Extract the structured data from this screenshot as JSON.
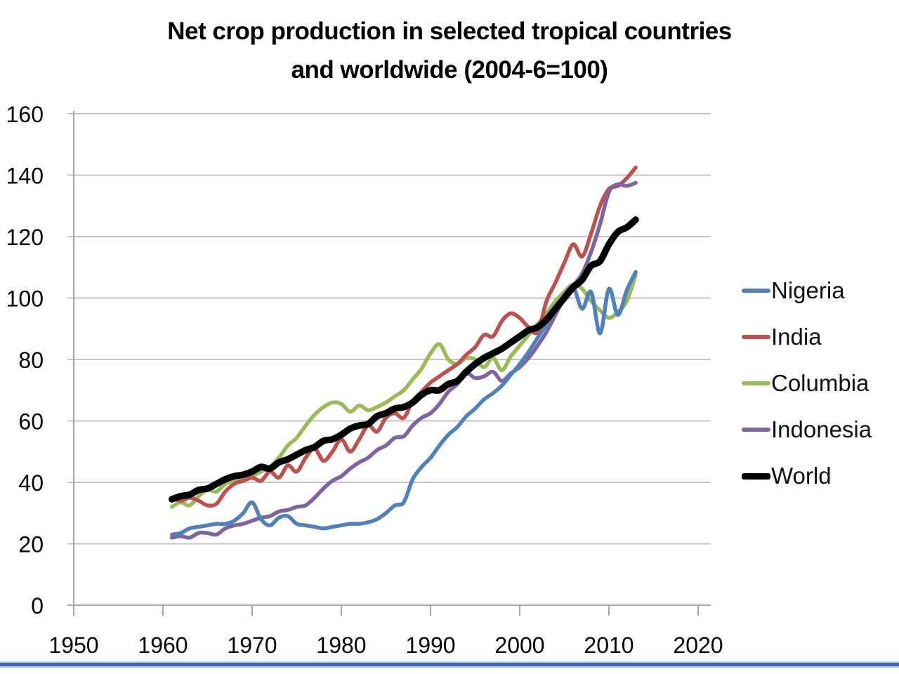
{
  "title": {
    "line1": "Net crop production in selected tropical countries",
    "line2": "and worldwide (2004-6=100)"
  },
  "colors": {
    "grid": "#c6c6c6",
    "axis": "#a6a6a6",
    "text": "#000000",
    "page_divider_core": "#3e68b2",
    "page_divider_halo": "#b9cbe8"
  },
  "chart_data": {
    "type": "line",
    "title": "Net crop production in selected tropical countries and worldwide (2004-6=100)",
    "xlabel": "",
    "ylabel": "",
    "xlim": [
      1950,
      2020
    ],
    "ylim": [
      0,
      160
    ],
    "x_ticks": [
      1950,
      1960,
      1970,
      1980,
      1990,
      2000,
      2010,
      2020
    ],
    "y_ticks": [
      0,
      20,
      40,
      60,
      80,
      100,
      120,
      140,
      160
    ],
    "grid": "horizontal",
    "legend_position": "right",
    "x": [
      1961,
      1962,
      1963,
      1964,
      1965,
      1966,
      1967,
      1968,
      1969,
      1970,
      1971,
      1972,
      1973,
      1974,
      1975,
      1976,
      1977,
      1978,
      1979,
      1980,
      1981,
      1982,
      1983,
      1984,
      1985,
      1986,
      1987,
      1988,
      1989,
      1990,
      1991,
      1992,
      1993,
      1994,
      1995,
      1996,
      1997,
      1998,
      1999,
      2000,
      2001,
      2002,
      2003,
      2004,
      2005,
      2006,
      2007,
      2008,
      2009,
      2010,
      2011,
      2012,
      2013
    ],
    "draw_order": [
      2,
      1,
      3,
      0,
      4
    ],
    "series": [
      {
        "name": "Nigeria",
        "color": "#4f81bd",
        "line_width": 5.5,
        "values": [
          23,
          23.5,
          25,
          25.5,
          26,
          26.5,
          26.5,
          27.5,
          30,
          33.5,
          28,
          26,
          28.5,
          29,
          26.5,
          26,
          25.5,
          25,
          25.5,
          26,
          26.5,
          26.5,
          27,
          28,
          30,
          32.5,
          33.5,
          41,
          45,
          48,
          52,
          55.5,
          58,
          61.5,
          64,
          67,
          69,
          71.5,
          75,
          78.5,
          82.5,
          87,
          91.5,
          96.5,
          101,
          103.5,
          96.5,
          102,
          88.5,
          103,
          94.5,
          102.5,
          108.5
        ]
      },
      {
        "name": "India",
        "color": "#c0504d",
        "line_width": 5.5,
        "values": [
          35,
          34,
          35,
          34,
          32.5,
          33,
          37,
          39.5,
          40.5,
          41.5,
          40.5,
          43.5,
          41.5,
          45.5,
          43.5,
          48,
          51,
          47,
          50,
          54,
          50,
          54,
          58.5,
          56.5,
          61,
          62.5,
          61,
          66.5,
          69.5,
          72.5,
          74.5,
          76.5,
          78.5,
          81.5,
          84,
          88,
          87.5,
          92.5,
          95,
          93.5,
          90.5,
          89,
          99,
          105,
          111.5,
          117.5,
          113.5,
          121,
          130,
          135.5,
          136.5,
          139,
          142.5
        ]
      },
      {
        "name": "Columbia",
        "color": "#9bbb59",
        "line_width": 5.5,
        "values": [
          32,
          33.5,
          32.5,
          35.5,
          37.5,
          37,
          39.5,
          40.5,
          41,
          42,
          43.5,
          45,
          48,
          52,
          54.5,
          58.5,
          62,
          64.5,
          66,
          65.5,
          63,
          65,
          63.5,
          64.5,
          66,
          68,
          70,
          73.5,
          77,
          82,
          85,
          80,
          78.5,
          80.5,
          80,
          77.5,
          80.5,
          76.5,
          81,
          84.5,
          88,
          91.5,
          95,
          99,
          102,
          104.5,
          103,
          99,
          96,
          93.5,
          95.5,
          99,
          107.5
        ]
      },
      {
        "name": "Indonesia",
        "color": "#8064a2",
        "line_width": 5.5,
        "values": [
          22,
          22.5,
          22,
          23.5,
          23.5,
          23,
          25,
          26,
          26.5,
          27.5,
          28.5,
          29,
          30.5,
          31,
          32,
          32.5,
          35,
          38,
          40.5,
          42,
          44.5,
          46.5,
          48,
          50.5,
          52,
          54.5,
          55,
          58.5,
          61,
          62.5,
          65.5,
          69.5,
          72,
          75.5,
          74,
          74.5,
          76,
          73,
          75.5,
          77.5,
          80.5,
          84.5,
          89,
          94.5,
          100,
          104,
          108,
          115,
          124,
          134.5,
          137,
          136.5,
          137.5
        ]
      },
      {
        "name": "World",
        "color": "#000000",
        "line_width": 9.5,
        "values": [
          34.5,
          35.5,
          36,
          37.5,
          38,
          39.5,
          41,
          42,
          42.5,
          43.5,
          45,
          44.5,
          46.5,
          47.5,
          49,
          50.5,
          51.5,
          53.5,
          54,
          55.5,
          57.5,
          58.5,
          59,
          61.5,
          62.5,
          64,
          64.5,
          66,
          68.5,
          70,
          70,
          72,
          73,
          76,
          78.5,
          80.5,
          82,
          83.5,
          85.5,
          87.5,
          89.5,
          90.5,
          93,
          96.5,
          100,
          103.5,
          106,
          110.5,
          112,
          117.5,
          121.5,
          123,
          125.5
        ]
      }
    ]
  }
}
